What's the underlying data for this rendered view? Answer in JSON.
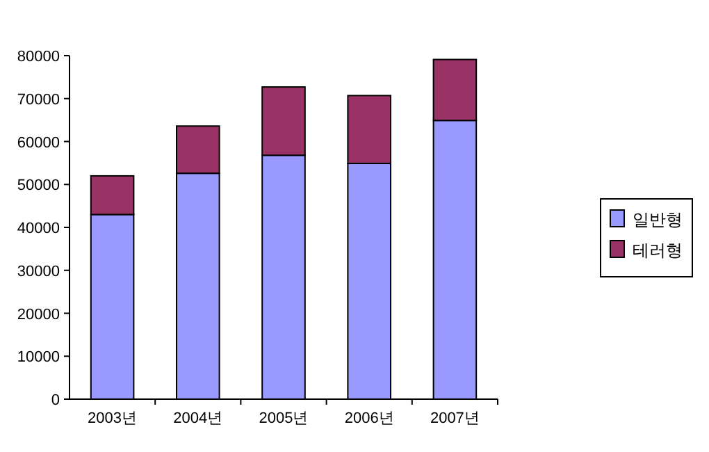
{
  "chart_data": {
    "type": "bar",
    "stacked": true,
    "categories": [
      "2003년",
      "2004년",
      "2005년",
      "2006년",
      "2007년"
    ],
    "series": [
      {
        "name": "일반형",
        "color": "#9999ff",
        "values": [
          43000,
          52600,
          56800,
          54900,
          64900
        ]
      },
      {
        "name": "테러형",
        "color": "#993366",
        "values": [
          9000,
          11000,
          15900,
          15800,
          14200
        ]
      }
    ],
    "ylim": [
      0,
      80000
    ],
    "yticks": [
      0,
      10000,
      20000,
      30000,
      40000,
      50000,
      60000,
      70000,
      80000
    ],
    "grid": false,
    "legend": "right"
  }
}
